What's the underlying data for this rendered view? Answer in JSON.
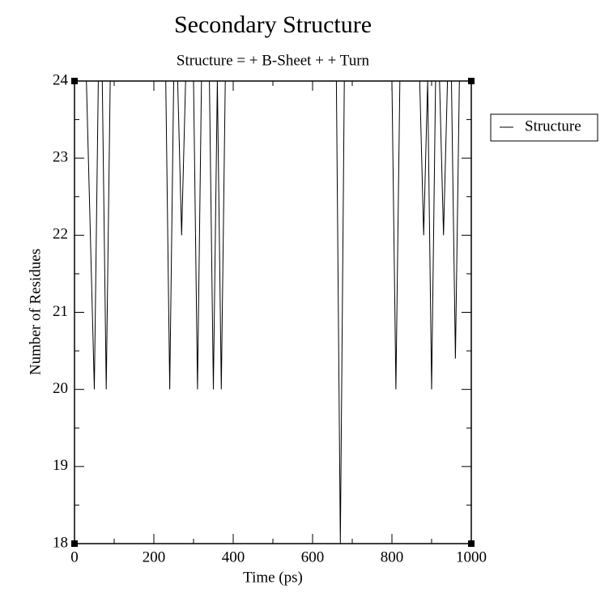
{
  "chart_data": {
    "type": "line",
    "title": "Secondary Structure",
    "subtitle": "Structure =  + B-Sheet +  + Turn",
    "xlabel": "Time (ps)",
    "ylabel": "Number of Residues",
    "x": [
      0,
      30,
      50,
      60,
      70,
      80,
      90,
      230,
      240,
      250,
      260,
      270,
      280,
      290,
      300,
      310,
      320,
      340,
      350,
      360,
      370,
      380,
      660,
      670,
      680,
      800,
      810,
      820,
      870,
      880,
      890,
      900,
      910,
      920,
      930,
      940,
      950,
      960,
      970,
      1000
    ],
    "series": [
      {
        "name": "Structure",
        "color": "#000000",
        "values": [
          24,
          24,
          20,
          24,
          24,
          20,
          24,
          24,
          20,
          24,
          24,
          22,
          24,
          24,
          24,
          20,
          24,
          24,
          20,
          24,
          20,
          24,
          24,
          18,
          24,
          24,
          20,
          24,
          24,
          22,
          24,
          20,
          24,
          24,
          22,
          24,
          24,
          20.4,
          24,
          24
        ]
      }
    ],
    "xlim": [
      0,
      1000
    ],
    "xticks": [
      0,
      200,
      400,
      600,
      800,
      1000
    ],
    "xminorticks": [
      100,
      300,
      500,
      700,
      900
    ],
    "ylim": [
      18,
      24
    ],
    "yticks": [
      18,
      19,
      20,
      21,
      22,
      23,
      24
    ],
    "yminorticks": [
      18.5,
      19.5,
      20.5,
      21.5,
      22.5,
      23.5
    ],
    "legend": "right"
  }
}
